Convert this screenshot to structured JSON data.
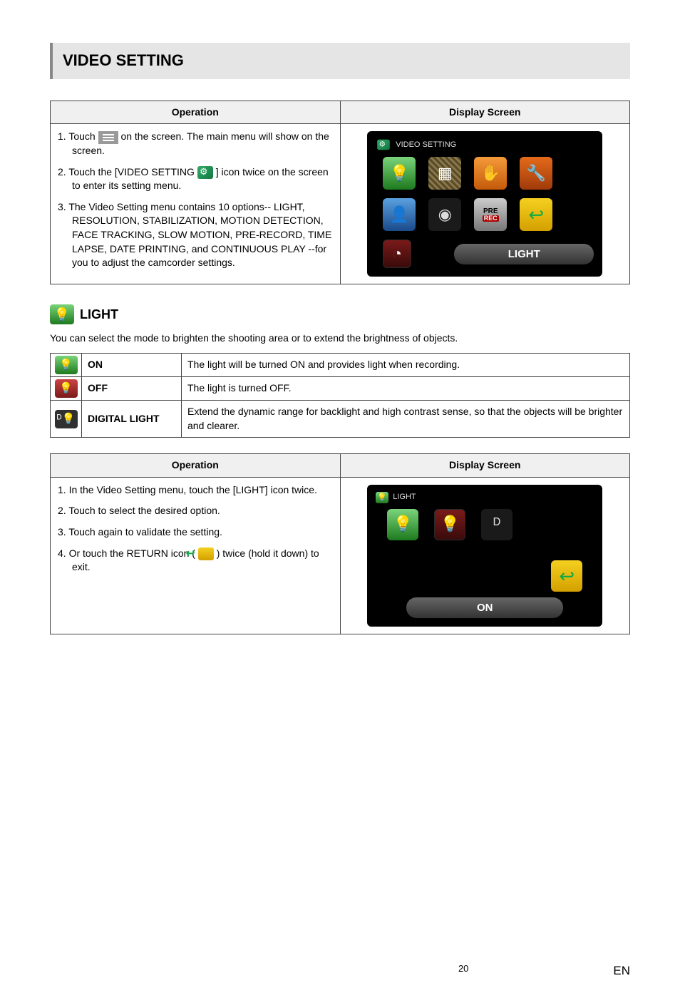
{
  "page": {
    "number": "20",
    "lang": "EN"
  },
  "section_title": "VIDEO SETTING",
  "table1": {
    "col_operation": "Operation",
    "col_display": "Display Screen",
    "step1_a": "1.  Touch ",
    "step1_b": " on the screen. The main menu will show on the screen.",
    "step2_a": "2.  Touch the [VIDEO SETTING ",
    "step2_b": " ] icon twice on the screen to enter its setting menu.",
    "step3": "3.  The Video Setting menu contains 10 options-- LIGHT, RESOLUTION, STABILIZATION, MOTION DETECTION, FACE TRACKING, SLOW MOTION, PRE-RECORD, TIME LAPSE, DATE PRINTING, and CONTINUOUS PLAY --for you to adjust the camcorder settings.",
    "screen_title": "VIDEO SETTING",
    "screen_label": "LIGHT",
    "row1_icons": [
      {
        "cls": "green",
        "glyph": "💡",
        "name": "light-tile"
      },
      {
        "cls": "patt",
        "glyph": "▦",
        "name": "resolution-tile"
      },
      {
        "cls": "hand",
        "glyph": "✋",
        "name": "stabilization-tile"
      },
      {
        "cls": "tool",
        "glyph": "🔧",
        "name": "motion-detection-tile"
      }
    ],
    "row2_icons": [
      {
        "cls": "blue",
        "glyph": "👤",
        "name": "face-tracking-tile"
      },
      {
        "cls": "dark",
        "glyph": "◉",
        "name": "slow-motion-tile"
      },
      {
        "cls": "gray",
        "glyph": "PRE|REC",
        "name": "pre-record-tile"
      },
      {
        "cls": "yellow",
        "glyph": "↩",
        "name": "return-tile"
      }
    ],
    "row3_icon": {
      "cls": "red",
      "glyph": "◔",
      "name": "time-lapse-tile"
    }
  },
  "light": {
    "heading": "LIGHT",
    "intro": "You can select the mode to brighten the shooting area or to extend the brightness of objects.",
    "options": [
      {
        "icon": "on",
        "glyph": "💡",
        "name": "ON",
        "desc": "The light will be turned ON and provides light when recording."
      },
      {
        "icon": "off",
        "glyph": "💡",
        "name": "OFF",
        "desc": "The light is turned OFF."
      },
      {
        "icon": "dl",
        "glyph": "ᴰ💡",
        "name": "DIGITAL LIGHT",
        "desc": "Extend the dynamic range for backlight and high contrast sense, so that the objects will be brighter and clearer."
      }
    ]
  },
  "table2": {
    "col_operation": "Operation",
    "col_display": "Display Screen",
    "step1": "1.  In the Video Setting menu, touch the [LIGHT] icon twice.",
    "step2": "2.  Touch to select the desired option.",
    "step3": "3.  Touch again to validate the setting.",
    "step4_a": "4.  Or touch the RETURN icon ( ",
    "step4_b": " ) twice (hold it down) to exit.",
    "screen_title": "LIGHT",
    "screen_label": "ON",
    "icons": [
      {
        "cls": "green",
        "glyph": "💡",
        "name": "light-on-tile"
      },
      {
        "cls": "red",
        "glyph": "💡",
        "name": "light-off-tile"
      },
      {
        "cls": "dark",
        "glyph": "ᴰ",
        "name": "digital-light-tile"
      }
    ]
  }
}
